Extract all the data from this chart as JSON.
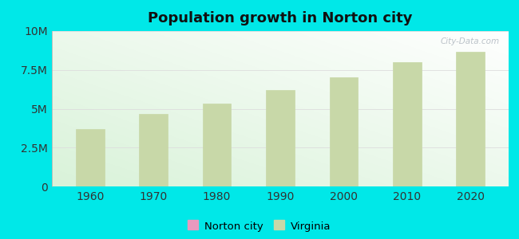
{
  "title": "Population growth in Norton city",
  "years": [
    1960,
    1970,
    1980,
    1990,
    2000,
    2010,
    2020
  ],
  "virginia_values": [
    3700000,
    4650000,
    5350000,
    6200000,
    7050000,
    8000000,
    8650000
  ],
  "bar_color": "#c8d8a8",
  "bar_edge_color": "#c8d8a8",
  "bg_outer": "#00e8e8",
  "ylim": [
    0,
    10000000
  ],
  "yticks": [
    0,
    2500000,
    5000000,
    7500000,
    10000000
  ],
  "ytick_labels": [
    "0",
    "2.5M",
    "5M",
    "7.5M",
    "10M"
  ],
  "title_fontsize": 13,
  "tick_fontsize": 10,
  "legend_norton_color": "#e899be",
  "legend_virginia_color": "#c8d8a8",
  "watermark": "City-Data.com",
  "grid_color": "#dddddd",
  "bar_width": 0.45
}
